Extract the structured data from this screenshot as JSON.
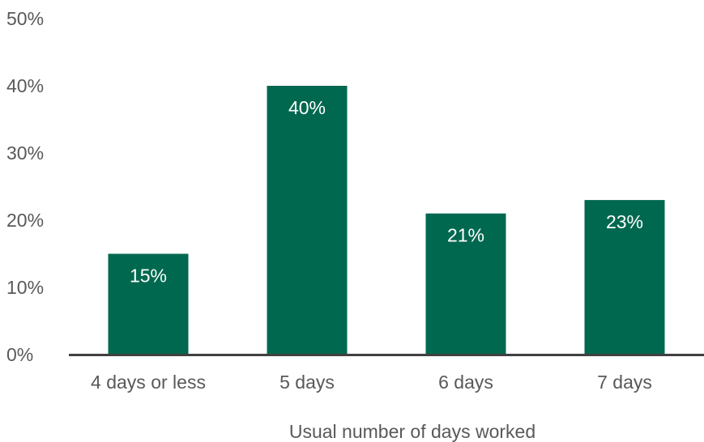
{
  "chart_data": {
    "type": "bar",
    "title": "",
    "xlabel": "Usual number of days worked",
    "ylabel": "",
    "categories": [
      "4 days or less",
      "5 days",
      "6 days",
      "7 days"
    ],
    "values": [
      15,
      40,
      21,
      23
    ],
    "data_labels": [
      "15%",
      "40%",
      "21%",
      "23%"
    ],
    "y_ticks": [
      0,
      10,
      20,
      30,
      40,
      50
    ],
    "y_tick_labels": [
      "0%",
      "10%",
      "20%",
      "30%",
      "40%",
      "50%"
    ],
    "ylim": [
      0,
      50
    ],
    "grid": false,
    "legend": "none",
    "bar_color": "#00684F",
    "axis_color": "#404040"
  }
}
